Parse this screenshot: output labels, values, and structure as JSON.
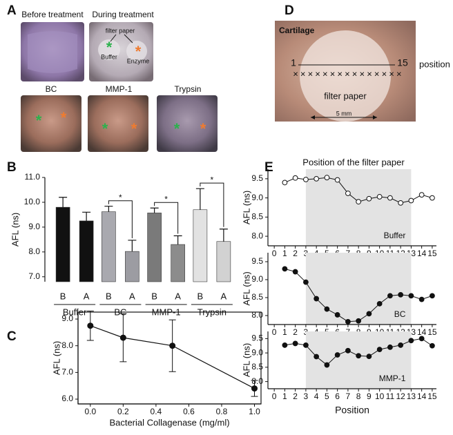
{
  "figure": {
    "panels": [
      "A",
      "B",
      "C",
      "D",
      "E"
    ],
    "photos_a": {
      "captions": [
        "Before treatment",
        "During treatment",
        "BC",
        "MMP-1",
        "Trypsin"
      ],
      "filter_paper": "filter paper",
      "buffer": "Buffer",
      "enzyme": "Enzyme",
      "asterisk": "*"
    },
    "photo_d": {
      "tissue": "Cartilage",
      "start": "1",
      "end": "15",
      "axis": "position",
      "mark": "×",
      "filter_paper": "filter paper",
      "scale": "5 mm"
    }
  },
  "chart_data": [
    {
      "type": "bar",
      "ylabel": "AFL (ns)",
      "ylim": [
        6.8,
        11
      ],
      "yticks": [
        {
          "value": 7,
          "label": "7.0"
        },
        {
          "value": 8,
          "label": "8.0"
        },
        {
          "value": 9,
          "label": "9.0"
        },
        {
          "value": 10,
          "label": "10.0"
        },
        {
          "value": 11,
          "label": "11.0"
        }
      ],
      "categories": [
        "B",
        "A"
      ],
      "series": [
        {
          "name": "Buffer",
          "colors": [
            "#111111",
            "#111111"
          ],
          "values": [
            9.8,
            9.25
          ],
          "errors": [
            0.4,
            0.35
          ]
        },
        {
          "name": "BC",
          "colors": [
            "#a9a9af",
            "#9c9ca2"
          ],
          "values": [
            9.62,
            8.02
          ],
          "errors": [
            0.22,
            0.45
          ],
          "annotation": "*"
        },
        {
          "name": "MMP-1",
          "colors": [
            "#7a7a7a",
            "#8c8c8c"
          ],
          "values": [
            9.57,
            8.3
          ],
          "errors": [
            0.2,
            0.35
          ],
          "annotation": "*"
        },
        {
          "name": "Trypsin",
          "colors": [
            "#e2e2e2",
            "#d2d2d2"
          ],
          "values": [
            9.7,
            8.42
          ],
          "errors": [
            0.85,
            0.5
          ],
          "annotation": "*"
        }
      ]
    },
    {
      "type": "errorline",
      "xlabel": "Bacterial Collagenase (mg/ml)",
      "ylabel": "AFL (ns)",
      "x": [
        0,
        0.2,
        0.5,
        1
      ],
      "values": [
        8.75,
        8.3,
        8.0,
        6.4
      ],
      "errors": [
        0.55,
        0.9,
        0.97,
        0.3
      ],
      "xlim": [
        -0.075,
        1.04
      ],
      "xticks": [
        {
          "value": 0,
          "label": "0.0"
        },
        0.2,
        0.4,
        0.6,
        0.8,
        {
          "value": 1,
          "label": "1.0"
        }
      ],
      "ylim": [
        5.82,
        9.26
      ],
      "yticks": [
        {
          "value": 6,
          "label": "6.0"
        },
        {
          "value": 7,
          "label": "7.0"
        },
        {
          "value": 8,
          "label": "8.0"
        },
        {
          "value": 9,
          "label": "9.0"
        }
      ]
    },
    {
      "type": "line",
      "title": "Position of the filter paper",
      "label": "Buffer",
      "ylabel": "AFL (ns)",
      "marker": "open",
      "x": [
        1,
        2,
        3,
        4,
        5,
        6,
        7,
        8,
        9,
        10,
        11,
        12,
        13,
        14,
        15
      ],
      "values": [
        9.4,
        9.52,
        9.48,
        9.5,
        9.53,
        9.47,
        9.12,
        8.9,
        8.98,
        9.03,
        9.0,
        8.87,
        8.93,
        9.08,
        9.0
      ],
      "shade": [
        3,
        13
      ],
      "xlim": [
        -0.6,
        15.4
      ],
      "xticks": [
        0,
        1,
        2,
        3,
        4,
        5,
        6,
        7,
        8,
        9,
        10,
        11,
        12,
        13,
        14,
        15
      ],
      "ylim": [
        7.75,
        9.75
      ],
      "yticks": [
        {
          "value": 8,
          "label": "8.0"
        },
        8.5,
        {
          "value": 9,
          "label": "9.0"
        },
        9.5
      ]
    },
    {
      "type": "line",
      "label": "BC",
      "ylabel": "AFL (ns)",
      "marker": "filled",
      "x": [
        1,
        2,
        3,
        4,
        5,
        6,
        7,
        8,
        9,
        10,
        11,
        12,
        13,
        14,
        15
      ],
      "values": [
        9.3,
        9.22,
        8.93,
        8.47,
        8.18,
        8.02,
        7.83,
        7.85,
        8.05,
        8.33,
        8.55,
        8.58,
        8.55,
        8.45,
        8.55
      ],
      "shade": [
        3,
        13
      ],
      "xlim": [
        -0.6,
        15.4
      ],
      "xticks": [
        0,
        1,
        2,
        3,
        4,
        5,
        6,
        7,
        8,
        9,
        10,
        11,
        12,
        13,
        14,
        15
      ],
      "ylim": [
        7.75,
        9.75
      ],
      "yticks": [
        {
          "value": 8,
          "label": "8.0"
        },
        8.5,
        {
          "value": 9,
          "label": "9.0"
        },
        9.5
      ]
    },
    {
      "type": "line",
      "label": "MMP-1",
      "ylabel": "AFL (ns)",
      "xlabel": "Position",
      "marker": "filled",
      "x": [
        1,
        2,
        3,
        4,
        5,
        6,
        7,
        8,
        9,
        10,
        11,
        12,
        13,
        14,
        15
      ],
      "values": [
        9.27,
        9.33,
        9.27,
        8.87,
        8.58,
        8.93,
        9.08,
        8.9,
        8.88,
        9.12,
        9.2,
        9.27,
        9.43,
        9.5,
        9.25
      ],
      "shade": [
        3,
        13
      ],
      "xlim": [
        -0.6,
        15.4
      ],
      "xticks": [
        0,
        1,
        2,
        3,
        4,
        5,
        6,
        7,
        8,
        9,
        10,
        11,
        12,
        13,
        14,
        15
      ],
      "ylim": [
        7.75,
        9.75
      ],
      "yticks": [
        {
          "value": 8,
          "label": "8.0"
        },
        8.5,
        {
          "value": 9,
          "label": "9.0"
        },
        9.5
      ]
    }
  ]
}
